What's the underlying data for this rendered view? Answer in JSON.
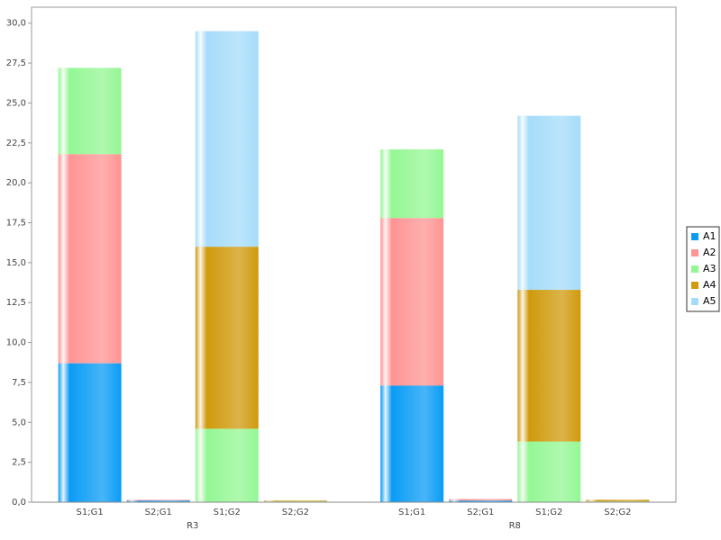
{
  "chart_data": {
    "type": "stacked_bar",
    "categories": [
      "S1;G1",
      "S2;G1",
      "S1;G2",
      "S2;G2",
      "S1;G1",
      "S2;G1",
      "S1;G2",
      "S2;G2"
    ],
    "groups": [
      "R3",
      "R8"
    ],
    "series": [
      {
        "name": "A1",
        "color": "#0a9cf5",
        "values": [
          8.7,
          0.1,
          null,
          null,
          7.3,
          0.1,
          null,
          null
        ]
      },
      {
        "name": "A2",
        "color": "#ff9494",
        "values": [
          13.1,
          0.05,
          null,
          null,
          10.5,
          0.1,
          null,
          null
        ]
      },
      {
        "name": "A3",
        "color": "#94f794",
        "values": [
          5.4,
          null,
          4.6,
          0.05,
          4.3,
          null,
          3.8,
          0.05
        ]
      },
      {
        "name": "A4",
        "color": "#d09a0c",
        "values": [
          null,
          null,
          11.4,
          0.05,
          null,
          null,
          9.5,
          0.1
        ]
      },
      {
        "name": "A5",
        "color": "#a6dcfa",
        "values": [
          null,
          null,
          13.5,
          null,
          null,
          null,
          10.9,
          null
        ]
      }
    ],
    "ylim": [
      0,
      31
    ],
    "yticks": [
      {
        "value": 0,
        "label": "0,0"
      },
      {
        "value": 2.5,
        "label": "2,5"
      },
      {
        "value": 5,
        "label": "5,0"
      },
      {
        "value": 7.5,
        "label": "7,5"
      },
      {
        "value": 10,
        "label": "10,0"
      },
      {
        "value": 12.5,
        "label": "12,5"
      },
      {
        "value": 15,
        "label": "15,0"
      },
      {
        "value": 17.5,
        "label": "17,5"
      },
      {
        "value": 20,
        "label": "20,0"
      },
      {
        "value": 22.5,
        "label": "22,5"
      },
      {
        "value": 25,
        "label": "25,0"
      },
      {
        "value": 27.5,
        "label": "27,5"
      },
      {
        "value": 30,
        "label": "30,0"
      }
    ],
    "legend": "right"
  }
}
